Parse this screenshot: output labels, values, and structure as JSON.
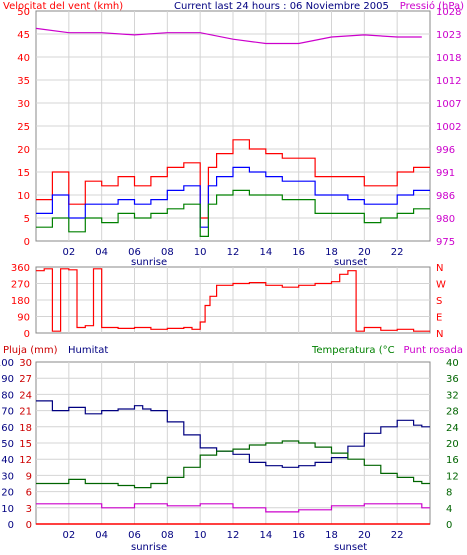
{
  "chart_data": [
    {
      "type": "line",
      "title": "Current last 24 hours : 06 Noviembre 2005",
      "ylabel": "Velocitat del vent (kmh)",
      "y2label": "Pressió (hPa)",
      "x_ticks": [
        "02",
        "04",
        "06",
        "08",
        "10",
        "12",
        "14",
        "16",
        "18",
        "20",
        "22"
      ],
      "markers": [
        "sunrise",
        "sunset"
      ],
      "ylim": [
        0,
        50
      ],
      "y_ticks": [
        "0",
        "5",
        "10",
        "15",
        "20",
        "25",
        "30",
        "35",
        "40",
        "45",
        "50"
      ],
      "y2lim": [
        975,
        1028
      ],
      "y2_ticks": [
        "975",
        "980",
        "986",
        "991",
        "996",
        "1002",
        "1007",
        "1012",
        "1018",
        "1023",
        "1028"
      ],
      "colors": {
        "gust": "#ff0000",
        "avg": "#0000ff",
        "min": "#008000",
        "pressure": "#cc00cc",
        "title": "#000080"
      },
      "grid": true,
      "series": [
        {
          "key": "gust",
          "x": [
            0,
            1,
            2,
            3,
            4,
            5,
            6,
            7,
            8,
            9,
            10,
            10.5,
            11,
            12,
            13,
            14,
            15,
            16,
            17,
            18,
            19,
            20,
            21,
            22,
            23
          ],
          "values": [
            9,
            15,
            8,
            13,
            12,
            14,
            12,
            14,
            16,
            17,
            5,
            16,
            19,
            22,
            20,
            19,
            18,
            18,
            14,
            14,
            14,
            12,
            12,
            15,
            16
          ]
        },
        {
          "key": "avg",
          "x": [
            0,
            1,
            2,
            3,
            4,
            5,
            6,
            7,
            8,
            9,
            10,
            10.5,
            11,
            12,
            13,
            14,
            15,
            16,
            17,
            18,
            19,
            20,
            21,
            22,
            23
          ],
          "values": [
            6,
            10,
            5,
            8,
            8,
            9,
            8,
            9,
            11,
            12,
            3,
            12,
            14,
            16,
            15,
            14,
            13,
            13,
            10,
            10,
            9,
            8,
            8,
            10,
            11
          ]
        },
        {
          "key": "min",
          "x": [
            0,
            1,
            2,
            3,
            4,
            5,
            6,
            7,
            8,
            9,
            10,
            10.5,
            11,
            12,
            13,
            14,
            15,
            16,
            17,
            18,
            19,
            20,
            21,
            22,
            23
          ],
          "values": [
            3,
            5,
            2,
            5,
            4,
            6,
            5,
            6,
            7,
            8,
            1,
            8,
            10,
            11,
            10,
            10,
            9,
            9,
            6,
            6,
            6,
            4,
            5,
            6,
            7
          ]
        },
        {
          "key": "pressure",
          "axis": "y2",
          "x": [
            0,
            2,
            4,
            6,
            8,
            10,
            12,
            14,
            15,
            16,
            18,
            20,
            22,
            23.5
          ],
          "values": [
            1024,
            1023,
            1023,
            1022.5,
            1023,
            1023,
            1021.5,
            1020.5,
            1020.5,
            1020.5,
            1022,
            1022.5,
            1022,
            1022
          ]
        }
      ]
    },
    {
      "type": "line",
      "title": "",
      "ylim": [
        0,
        360
      ],
      "y_ticks": [
        "0",
        "90",
        "180",
        "270",
        "360"
      ],
      "y2_ticks": [
        "N",
        "E",
        "S",
        "W",
        "N"
      ],
      "colors": {
        "direction": "#ff0000"
      },
      "series": [
        {
          "key": "direction",
          "x": [
            0,
            0.5,
            1,
            1.5,
            2,
            2.5,
            3,
            3.5,
            4,
            5,
            6,
            7,
            8,
            9,
            9.5,
            10,
            10.3,
            10.6,
            11,
            12,
            13,
            14,
            15,
            16,
            17,
            18,
            18.5,
            19,
            19.5,
            20,
            21,
            22,
            23
          ],
          "values": [
            340,
            350,
            10,
            350,
            345,
            30,
            40,
            350,
            30,
            25,
            30,
            20,
            25,
            30,
            20,
            60,
            150,
            200,
            260,
            270,
            275,
            260,
            250,
            260,
            270,
            280,
            320,
            340,
            10,
            30,
            15,
            20,
            10
          ]
        }
      ]
    },
    {
      "type": "line",
      "title": "",
      "ylabel": "Pluja (mm)",
      "y1b_label": "Humitat",
      "y2label": "Temperatura (°C",
      "y3label": "Punt rosada",
      "x_ticks": [
        "02",
        "04",
        "06",
        "08",
        "10",
        "12",
        "14",
        "16",
        "18",
        "20",
        "22"
      ],
      "markers": [
        "sunrise",
        "sunset"
      ],
      "ylim": [
        0,
        100
      ],
      "y_ticks": [
        "0",
        "10",
        "20",
        "30",
        "40",
        "50",
        "60",
        "70",
        "80",
        "90",
        "100"
      ],
      "y_ticks_b": [
        "0",
        "3",
        "6",
        "9",
        "12",
        "15",
        "18",
        "21",
        "24",
        "27",
        "30"
      ],
      "y2lim": [
        0,
        40
      ],
      "y2_ticks": [
        "0",
        "4",
        "8",
        "12",
        "16",
        "20",
        "24",
        "28",
        "32",
        "36",
        "40"
      ],
      "colors": {
        "humidity": "#000080",
        "temperature": "#006400",
        "dewpoint": "#cc00cc",
        "rain": "#ff0000",
        "rain_label": "#cc0000",
        "temp_label": "#008000"
      },
      "series": [
        {
          "key": "humidity",
          "axis": "y",
          "x": [
            0,
            0.5,
            1,
            2,
            3,
            4,
            5,
            6,
            6.5,
            7,
            8,
            9,
            10,
            11,
            12,
            13,
            14,
            15,
            16,
            17,
            18,
            19,
            20,
            21,
            22,
            23,
            23.5
          ],
          "values": [
            76,
            76,
            70,
            72,
            68,
            70,
            71,
            73,
            71,
            70,
            63,
            55,
            47,
            45,
            43,
            38,
            36,
            35,
            36,
            38,
            41,
            48,
            56,
            60,
            64,
            61,
            60
          ]
        },
        {
          "key": "temperature",
          "axis": "y2",
          "x": [
            0,
            1,
            2,
            3,
            4,
            5,
            6,
            7,
            8,
            9,
            10,
            11,
            12,
            13,
            14,
            15,
            16,
            17,
            18,
            19,
            20,
            21,
            22,
            23,
            23.5
          ],
          "values": [
            10,
            10,
            11,
            10,
            10,
            9.5,
            9,
            10,
            11.5,
            14,
            17,
            18,
            18.5,
            19.5,
            20,
            20.5,
            20,
            19,
            17.5,
            16,
            14.5,
            12.5,
            11.5,
            10.5,
            10
          ]
        },
        {
          "key": "dewpoint",
          "axis": "y2",
          "x": [
            0,
            2,
            4,
            6,
            8,
            10,
            12,
            14,
            16,
            18,
            20,
            22,
            23.5
          ],
          "values": [
            5,
            5,
            4,
            5,
            4.5,
            5,
            4,
            3,
            3.5,
            4.5,
            5,
            5,
            4
          ]
        },
        {
          "key": "rain",
          "axis": "y",
          "x": [
            0,
            23.5
          ],
          "values": [
            0,
            0
          ]
        }
      ]
    }
  ]
}
